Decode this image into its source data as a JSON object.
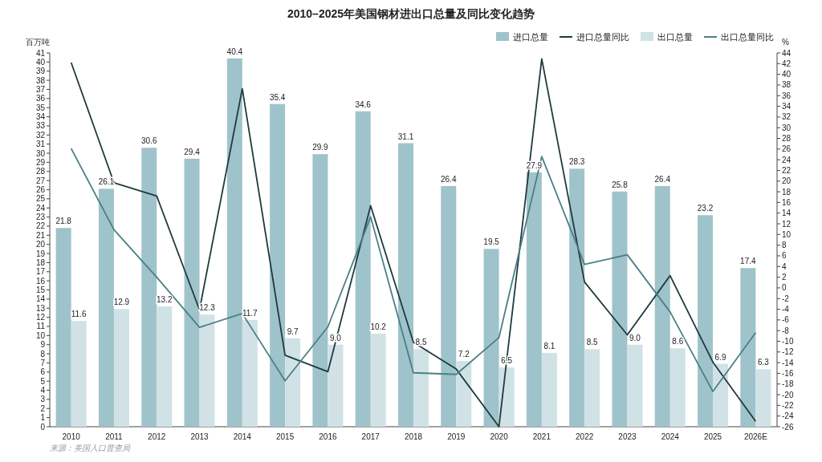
{
  "chart_data": {
    "type": "bar",
    "title": "2010–2025年美国钢材进出口总量及同比变化趋势",
    "ylabel": "百万吨",
    "y2label": "%",
    "categories": [
      "2010",
      "2011",
      "2012",
      "2013",
      "2014",
      "2015",
      "2016",
      "2017",
      "2018",
      "2019",
      "2020",
      "2021",
      "2022",
      "2023",
      "2024",
      "2025",
      "2026E"
    ],
    "series": [
      {
        "name": "进口总量",
        "color": "#9fc3cb",
        "values": [
          21.8,
          26.1,
          30.6,
          29.4,
          40.4,
          35.4,
          29.9,
          34.6,
          31.1,
          26.4,
          19.5,
          27.9,
          28.3,
          25.8,
          26.4,
          23.2,
          17.4
        ],
        "value_labels": [
          "21.8",
          "26.1",
          "30.6",
          "29.4",
          "40.4",
          "35.4",
          "29.9",
          "34.6",
          "31.1",
          "26.4",
          "19.5",
          "27.9",
          "28.3",
          "25.8",
          "26.4",
          "23.2",
          "17.4"
        ]
      },
      {
        "name": "进口总量同比",
        "type": "line",
        "axis": "y2",
        "color": "#1f3a3d",
        "values": [
          42.2,
          19.7,
          17.2,
          -4.1,
          37.3,
          -12.6,
          -15.7,
          15.4,
          -10.2,
          -15.2,
          -26,
          42.9,
          1.1,
          -8.8,
          2.3,
          -13.9,
          -25
        ]
      },
      {
        "name": "出口总量",
        "color": "#d0e2e5",
        "values": [
          11.6,
          12.9,
          13.2,
          12.3,
          11.7,
          9.7,
          9.0,
          10.2,
          8.5,
          7.2,
          6.5,
          8.1,
          8.5,
          9.0,
          8.6,
          6.9,
          6.3
        ],
        "value_labels": [
          "11.6",
          "12.9",
          "13.2",
          "12.3",
          "11.7",
          "9.7",
          "9.0",
          "10.2",
          "8.5",
          "7.2",
          "6.5",
          "8.1",
          "8.5",
          "9.0",
          "8.6",
          "6.9",
          "6.3"
        ]
      },
      {
        "name": "出口总量同比",
        "type": "line",
        "axis": "y2",
        "color": "#4a7f86",
        "values": [
          26.1,
          10.9,
          2.0,
          -7.4,
          -4.8,
          -17.4,
          -7.3,
          13.3,
          -15.9,
          -16.2,
          -9.3,
          24.6,
          4.4,
          6.2,
          -4.5,
          -19.4,
          -8.4
        ]
      }
    ],
    "ylim": [
      0,
      41
    ],
    "yticks": [
      0,
      1,
      2,
      3,
      4,
      5,
      6,
      7,
      8,
      9,
      10,
      11,
      12,
      13,
      14,
      15,
      16,
      17,
      18,
      19,
      20,
      21,
      22,
      23,
      24,
      25,
      26,
      27,
      28,
      29,
      30,
      31,
      32,
      33,
      34,
      35,
      36,
      37,
      38,
      39,
      40,
      41
    ],
    "y2lim": [
      -26,
      44
    ],
    "y2ticks": [
      -26,
      -24,
      -22,
      -20,
      -18,
      -16,
      -14,
      -12,
      -10,
      -8,
      -6,
      -4,
      -2,
      0,
      2,
      4,
      6,
      8,
      10,
      12,
      14,
      16,
      18,
      20,
      22,
      24,
      26,
      28,
      30,
      32,
      34,
      36,
      38,
      40,
      42,
      44
    ],
    "grid": false,
    "legend": "top right",
    "annotations": [
      "来源：美国人口普查局"
    ]
  }
}
